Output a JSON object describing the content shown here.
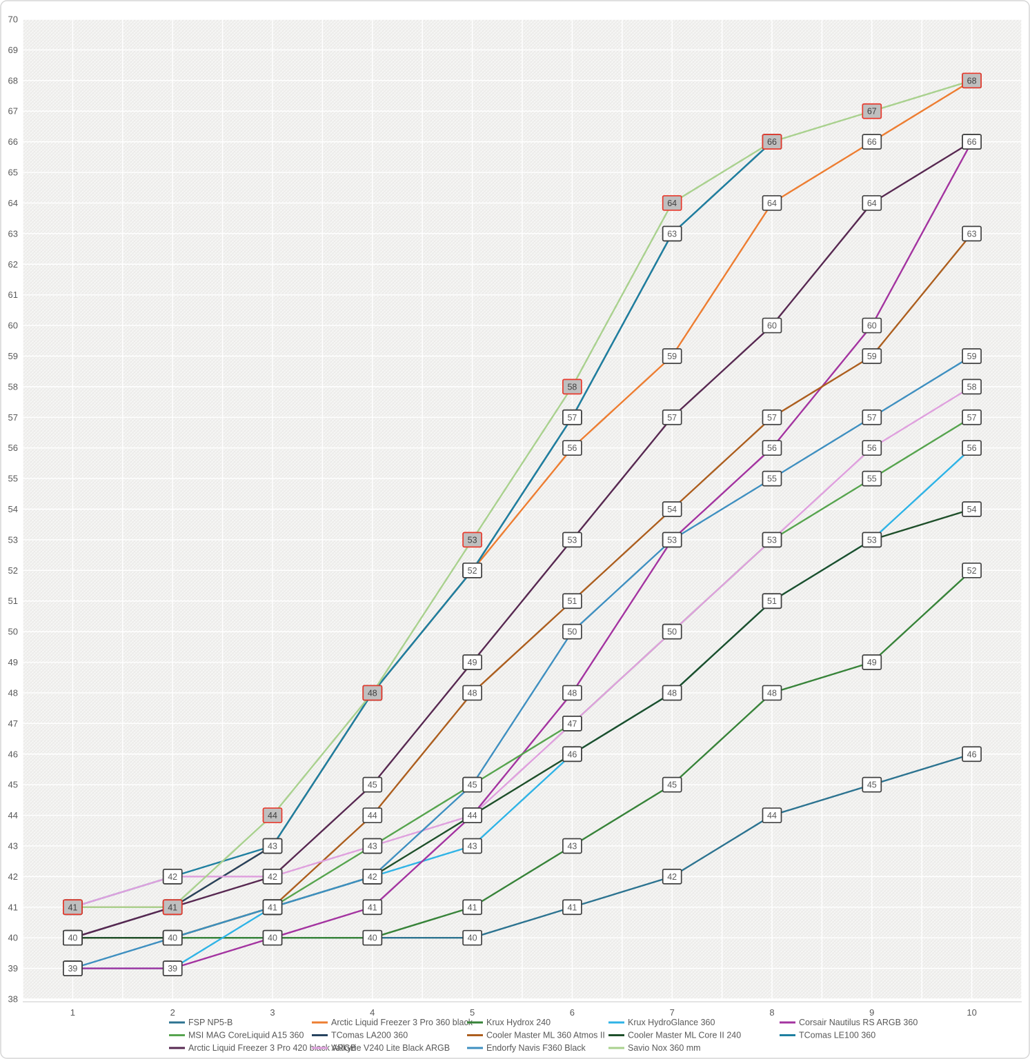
{
  "chart_data": {
    "type": "line",
    "x": [
      1,
      2,
      3,
      4,
      5,
      6,
      7,
      8,
      9,
      10
    ],
    "xlabel": "",
    "ylabel": "",
    "ylim": [
      38,
      70
    ],
    "y_tick_step": 1,
    "grid": "on",
    "legend_position": "bottom",
    "highlight_label_style": {
      "fill": "#BFBFBF",
      "border": "#E8392C"
    },
    "normal_label_style": {
      "fill": "#FFFFFF",
      "border": "#404040"
    },
    "series": [
      {
        "name": "FSP NP5-B",
        "color": "#2C7390",
        "values": [
          40,
          40,
          40,
          40,
          40,
          41,
          42,
          44,
          45,
          46
        ],
        "highlighted": false
      },
      {
        "name": "Arctic Liquid Freezer 3 Pro 360 black",
        "color": "#ED7D31",
        "values": [
          41,
          41,
          43,
          48,
          52,
          56,
          59,
          64,
          66,
          68
        ],
        "highlighted": false
      },
      {
        "name": "Krux Hydrox 240",
        "color": "#378339",
        "values": [
          40,
          40,
          40,
          40,
          41,
          43,
          45,
          48,
          49,
          52
        ],
        "highlighted": false
      },
      {
        "name": "Krux HydroGlance 360",
        "color": "#2EB3E6",
        "values": [
          39,
          39,
          41,
          42,
          43,
          46,
          48,
          51,
          53,
          56
        ],
        "highlighted": false
      },
      {
        "name": "Corsair  Nautilus RS ARGB 360",
        "color": "#A333A0",
        "values": [
          39,
          39,
          40,
          41,
          44,
          48,
          53,
          56,
          60,
          66
        ],
        "highlighted": false
      },
      {
        "name": "MSI MAG CoreLiquid A15 360",
        "color": "#56A44E",
        "values": [
          40,
          40,
          41,
          43,
          45,
          47,
          50,
          53,
          55,
          57
        ],
        "highlighted": false
      },
      {
        "name": "TComas LA200 360",
        "color": "#26435F",
        "values": [
          40,
          41,
          43,
          48,
          52,
          57,
          63,
          66
        ],
        "highlighted": false
      },
      {
        "name": "Cooler Master ML 360 Atmos II",
        "color": "#AC5E1E",
        "values": [
          40,
          40,
          41,
          44,
          48,
          51,
          54,
          57,
          59,
          63
        ],
        "highlighted": false
      },
      {
        "name": "Cooler Master ML Core II 240",
        "color": "#1E4F2A",
        "values": [
          40,
          40,
          41,
          42,
          44,
          46,
          48,
          51,
          53,
          54
        ],
        "highlighted": false
      },
      {
        "name": "TComas LE100 360",
        "color": "#1E7FA0",
        "values": [
          41,
          42,
          43,
          48,
          52,
          57,
          63,
          66
        ],
        "highlighted": false
      },
      {
        "name": "Arctic Liquid Freezer 3 Pro 420 black ARGB",
        "color": "#572851",
        "values": [
          40,
          41,
          42,
          45,
          49,
          53,
          57,
          60,
          64,
          66
        ],
        "highlighted": false
      },
      {
        "name": "Valkyrie V240 Lite Black ARGB",
        "color": "#DFA0DE",
        "values": [
          41,
          42,
          42,
          43,
          44,
          47,
          50,
          53,
          56,
          58
        ],
        "highlighted": false
      },
      {
        "name": "Endorfy Navis F360 Black",
        "color": "#3E8FC0",
        "values": [
          39,
          40,
          41,
          42,
          45,
          50,
          53,
          55,
          57,
          59
        ],
        "highlighted": false
      },
      {
        "name": "Savio Nox 360 mm",
        "color": "#A9D18E",
        "values": [
          41,
          41,
          44,
          48,
          53,
          58,
          64,
          66,
          67,
          68
        ],
        "highlighted": true
      }
    ]
  }
}
